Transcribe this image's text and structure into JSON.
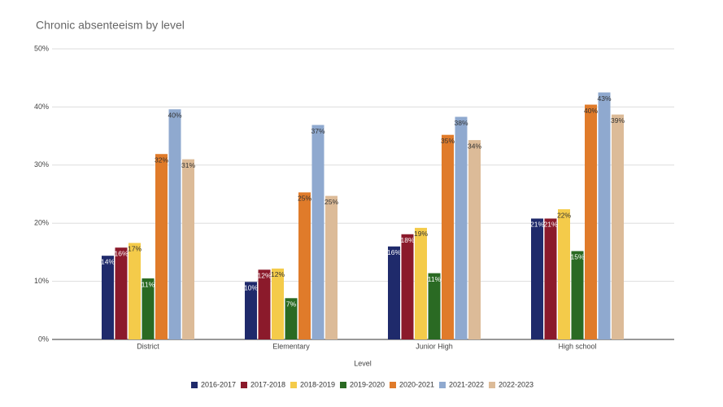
{
  "chart_data": {
    "type": "bar",
    "title": "Chronic absenteeism by level",
    "x_label": "Level",
    "categories": [
      "District",
      "Elementary",
      "Junior High",
      "High school"
    ],
    "series": [
      {
        "name": "2016-2017",
        "color": "#1f2a6b",
        "values": [
          14.4,
          9.9,
          16.0,
          20.8
        ],
        "value_labels": [
          "14%",
          "10%",
          "16%",
          "21%"
        ]
      },
      {
        "name": "2017-2018",
        "color": "#8b1a2b",
        "values": [
          15.8,
          12.0,
          18.1,
          20.8
        ],
        "value_labels": [
          "16%",
          "12%",
          "18%",
          "21%"
        ]
      },
      {
        "name": "2018-2019",
        "color": "#f4cb4a",
        "values": [
          16.6,
          12.2,
          19.2,
          22.4
        ],
        "value_labels": [
          "17%",
          "12%",
          "19%",
          "22%"
        ]
      },
      {
        "name": "2019-2020",
        "color": "#2a6a23",
        "values": [
          10.5,
          7.1,
          11.4,
          15.2
        ],
        "value_labels": [
          "11%",
          "7%",
          "11%",
          "15%"
        ]
      },
      {
        "name": "2020-2021",
        "color": "#e07b2a",
        "values": [
          31.9,
          25.3,
          35.2,
          40.4
        ],
        "value_labels": [
          "32%",
          "25%",
          "35%",
          "40%"
        ]
      },
      {
        "name": "2021-2022",
        "color": "#8fa9cf",
        "values": [
          39.6,
          36.9,
          38.3,
          42.5
        ],
        "value_labels": [
          "40%",
          "37%",
          "38%",
          "43%"
        ]
      },
      {
        "name": "2022-2023",
        "color": "#dcbb98",
        "values": [
          31.0,
          24.7,
          34.3,
          38.7
        ],
        "value_labels": [
          "31%",
          "25%",
          "34%",
          "39%"
        ]
      }
    ],
    "ylim": [
      0,
      50
    ],
    "yticks": [
      {
        "value": 0,
        "label": "0%"
      },
      {
        "value": 10,
        "label": "10%"
      },
      {
        "value": 20,
        "label": "20%"
      },
      {
        "value": 30,
        "label": "30%"
      },
      {
        "value": 40,
        "label": "40%"
      },
      {
        "value": 50,
        "label": "50%"
      }
    ],
    "grid": true,
    "legend": "bottom"
  }
}
